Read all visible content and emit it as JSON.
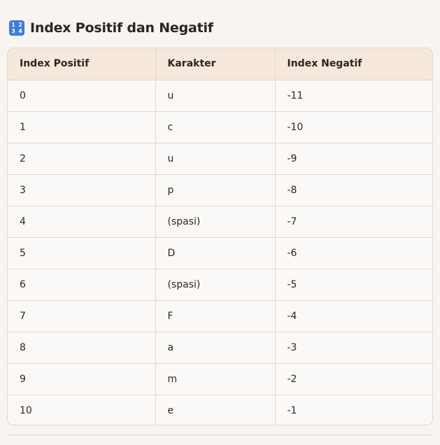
{
  "heading": {
    "icon_text": [
      "1",
      "2",
      "3",
      "4"
    ],
    "title": "Index Positif dan Negatif"
  },
  "table": {
    "headers": [
      "Index Positif",
      "Karakter",
      "Index Negatif"
    ],
    "rows": [
      [
        "0",
        "u",
        "-11"
      ],
      [
        "1",
        "c",
        "-10"
      ],
      [
        "2",
        "u",
        "-9"
      ],
      [
        "3",
        "p",
        "-8"
      ],
      [
        "4",
        "(spasi)",
        "-7"
      ],
      [
        "5",
        "D",
        "-6"
      ],
      [
        "6",
        "(spasi)",
        "-5"
      ],
      [
        "7",
        "F",
        "-4"
      ],
      [
        "8",
        "a",
        "-3"
      ],
      [
        "9",
        "m",
        "-2"
      ],
      [
        "10",
        "e",
        "-1"
      ]
    ]
  },
  "colors": {
    "background": "#f8f4f0",
    "header_bg": "#f6e8dc",
    "border": "#e2d8cd",
    "icon_bg": "#3d7be0"
  }
}
